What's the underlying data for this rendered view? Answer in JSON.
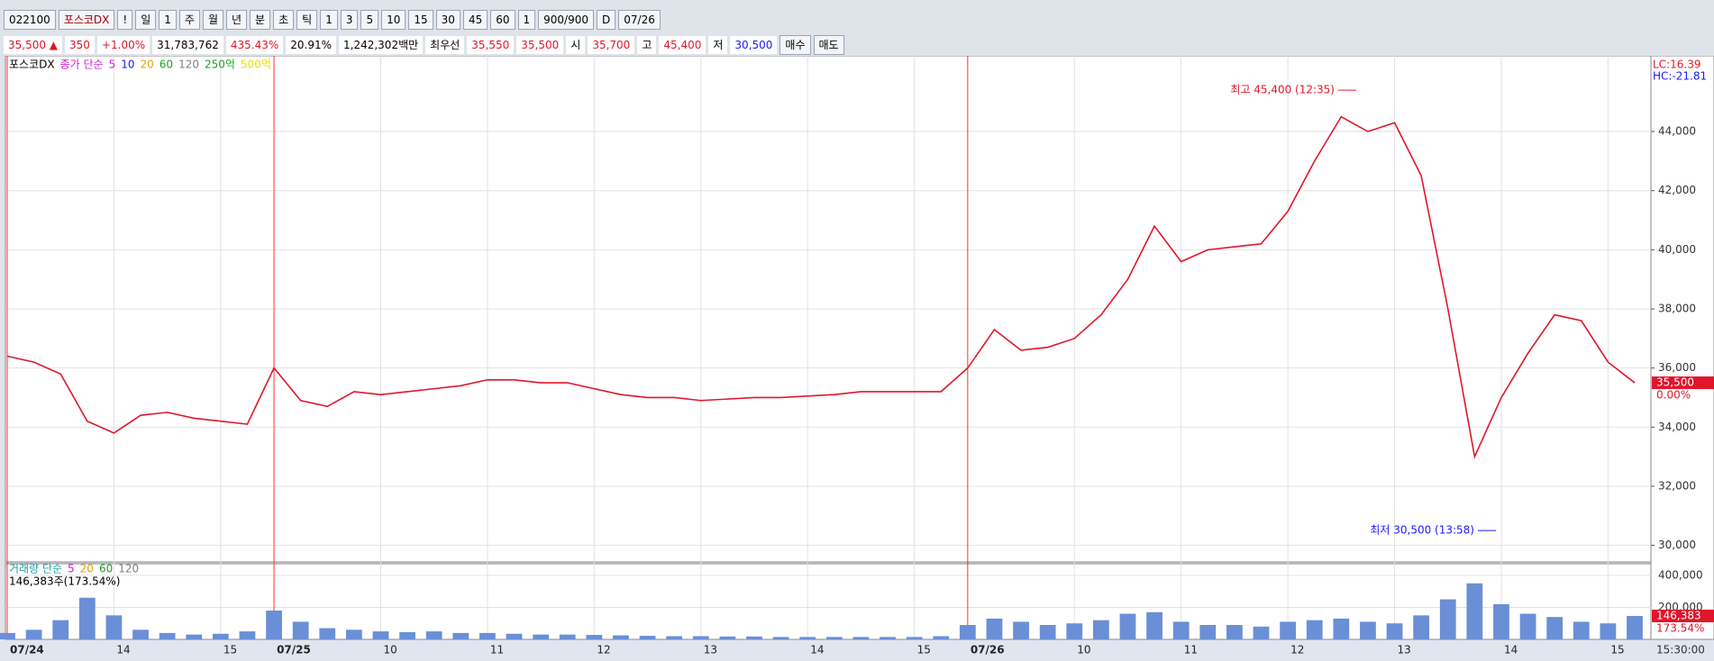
{
  "toolbar": {
    "code": "022100",
    "name": "포스코DX",
    "buttons": [
      "!",
      "일",
      "1",
      "주",
      "월",
      "년",
      "분",
      "초",
      "틱",
      "1",
      "3",
      "5",
      "10",
      "15",
      "30",
      "45",
      "60",
      "1",
      "900/900",
      "D",
      "07/26"
    ]
  },
  "info_bar": [
    {
      "text": "35,500 ▲",
      "color": "#e0162b"
    },
    {
      "text": "350",
      "color": "#e0162b"
    },
    {
      "text": "+1.00%",
      "color": "#e0162b"
    },
    {
      "text": "31,783,762",
      "color": "#000"
    },
    {
      "text": "435.43%",
      "color": "#e0162b"
    },
    {
      "text": "20.91%",
      "color": "#000"
    },
    {
      "text": "1,242,302백만",
      "color": "#000"
    },
    {
      "text": "최우선",
      "color": "#000"
    },
    {
      "text": "35,550",
      "color": "#e0162b"
    },
    {
      "text": "35,500",
      "color": "#e0162b"
    },
    {
      "text": "시",
      "color": "#000"
    },
    {
      "text": "35,700",
      "color": "#e0162b"
    },
    {
      "text": "고",
      "color": "#000"
    },
    {
      "text": "45,400",
      "color": "#e0162b"
    },
    {
      "text": "저",
      "color": "#000"
    },
    {
      "text": "30,500",
      "color": "#1a1aff"
    },
    {
      "text": "매수",
      "color": "#000"
    },
    {
      "text": "매도",
      "color": "#000"
    }
  ],
  "chart_data": {
    "type": "line",
    "legend": [
      {
        "text": "포스코DX",
        "color": "#000"
      },
      {
        "text": "종가 단순",
        "color": "#d020d0"
      },
      {
        "text": "5",
        "color": "#d020d0"
      },
      {
        "text": "10",
        "color": "#1a1aff"
      },
      {
        "text": "20",
        "color": "#e8a000"
      },
      {
        "text": "60",
        "color": "#20a020"
      },
      {
        "text": "120",
        "color": "#808080"
      },
      {
        "text": "250억",
        "color": "#20a020"
      },
      {
        "text": "500억",
        "color": "#e8e000"
      }
    ],
    "corner_labels": [
      {
        "text": "LC:16.39",
        "color": "#e0162b"
      },
      {
        "text": "HC:-21.81",
        "color": "#1a1aff"
      }
    ],
    "categories": [
      "07/24",
      null,
      null,
      null,
      "14",
      null,
      null,
      null,
      "15",
      null,
      "07/25",
      null,
      null,
      null,
      "10",
      null,
      null,
      null,
      "11",
      null,
      null,
      null,
      "12",
      null,
      null,
      null,
      "13",
      null,
      null,
      null,
      "14",
      null,
      null,
      null,
      "15",
      null,
      "07/26",
      null,
      null,
      null,
      "10",
      null,
      null,
      null,
      "11",
      null,
      null,
      null,
      "12",
      null,
      null,
      null,
      "13",
      null,
      null,
      null,
      "14",
      null,
      null,
      null,
      "15",
      null
    ],
    "time_label": "15:30:00",
    "series": [
      {
        "name": "포스코DX",
        "color": "#e0162b",
        "values": [
          36400,
          36200,
          35800,
          34200,
          33800,
          34400,
          34500,
          34300,
          34200,
          34100,
          36000,
          34900,
          34700,
          35200,
          35100,
          35200,
          35300,
          35400,
          35600,
          35600,
          35500,
          35500,
          35300,
          35100,
          35000,
          35000,
          34900,
          34950,
          35000,
          35000,
          35050,
          35100,
          35200,
          35200,
          35200,
          35200,
          36000,
          37300,
          36600,
          36700,
          37000,
          37800,
          39000,
          40800,
          39600,
          40000,
          40100,
          40200,
          41300,
          43000,
          44500,
          44000,
          44300,
          42500,
          38000,
          33000,
          35000,
          36500,
          37800,
          37600,
          36200,
          35500
        ]
      }
    ],
    "ylim": [
      29500,
      46500
    ],
    "yticks": [
      {
        "value": 30000,
        "label": "30,000"
      },
      {
        "value": 32000,
        "label": "32,000"
      },
      {
        "value": 34000,
        "label": "34,000"
      },
      {
        "value": 36000,
        "label": "36,000"
      },
      {
        "value": 38000,
        "label": "38,000"
      },
      {
        "value": 40000,
        "label": "40,000"
      },
      {
        "value": 42000,
        "label": "42,000"
      },
      {
        "value": 44000,
        "label": "44,000"
      }
    ],
    "grid": true,
    "annotations": [
      {
        "text": "최고 45,400 (12:35)",
        "value": 45400,
        "color": "#e0162b"
      },
      {
        "text": "최저 30,500 (13:58)",
        "value": 30500,
        "color": "#1a1aff"
      }
    ],
    "last_price": {
      "value": 35500,
      "label": "35,500",
      "change": "0.00%"
    },
    "volume": {
      "legend": [
        {
          "text": "거래량 단순",
          "color": "#20a0a0"
        },
        {
          "text": "5",
          "color": "#d020d0"
        },
        {
          "text": "20",
          "color": "#e8a000"
        },
        {
          "text": "60",
          "color": "#20a020"
        },
        {
          "text": "120",
          "color": "#808080"
        }
      ],
      "summary": "146,383주(173.54%)",
      "color": "#6a8fd6",
      "values": [
        40000,
        60000,
        120000,
        260000,
        150000,
        60000,
        40000,
        30000,
        35000,
        50000,
        180000,
        110000,
        70000,
        60000,
        50000,
        45000,
        50000,
        40000,
        40000,
        35000,
        30000,
        30000,
        28000,
        25000,
        22000,
        20000,
        20000,
        18000,
        18000,
        15000,
        15000,
        15000,
        15000,
        15000,
        15000,
        20000,
        90000,
        130000,
        110000,
        90000,
        100000,
        120000,
        160000,
        170000,
        110000,
        90000,
        90000,
        80000,
        110000,
        120000,
        130000,
        110000,
        100000,
        150000,
        250000,
        350000,
        220000,
        160000,
        140000,
        110000,
        100000,
        146383
      ],
      "last_label": {
        "value": 146383,
        "label": "146,383",
        "pct": "173.54%"
      },
      "ylim": [
        0,
        450000
      ],
      "yticks": [
        {
          "value": 200000,
          "label": "200,000"
        },
        {
          "value": 400000,
          "label": "400,000"
        }
      ]
    }
  }
}
